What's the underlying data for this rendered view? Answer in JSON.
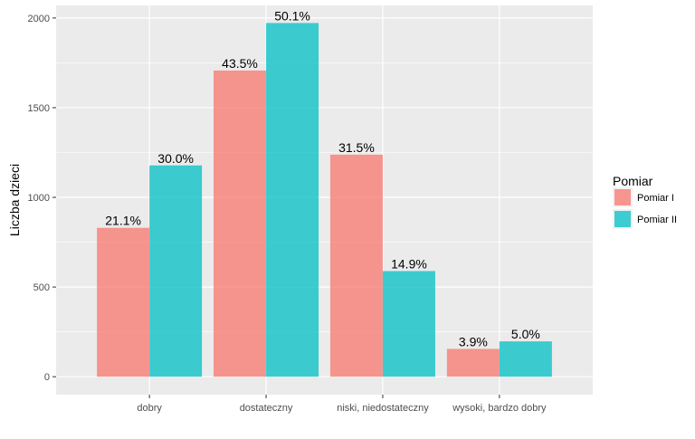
{
  "chart_data": {
    "type": "bar",
    "categories": [
      "dobry",
      "dostateczny",
      "niski, niedostateczny",
      "wysoki, bardzo dobry"
    ],
    "series": [
      {
        "name": "Pomiar I",
        "color": "#F8766D",
        "values": [
          830,
          1707,
          1238,
          155
        ],
        "labels": [
          "21.1%",
          "43.5%",
          "31.5%",
          "3.9%"
        ]
      },
      {
        "name": "Pomiar II",
        "color": "#00BFC4",
        "values": [
          1178,
          1972,
          589,
          197
        ],
        "labels": [
          "30.0%",
          "50.1%",
          "14.9%",
          "5.0%"
        ]
      }
    ],
    "ylabel": "Liczba dzieci",
    "xlabel": "",
    "ylim": [
      -100,
      2070
    ],
    "yticks": [
      0,
      500,
      1000,
      1500,
      2000
    ],
    "grid": true,
    "legend": {
      "title": "Pomiar",
      "position": "right"
    },
    "panel_color": "#EBEBEB"
  }
}
